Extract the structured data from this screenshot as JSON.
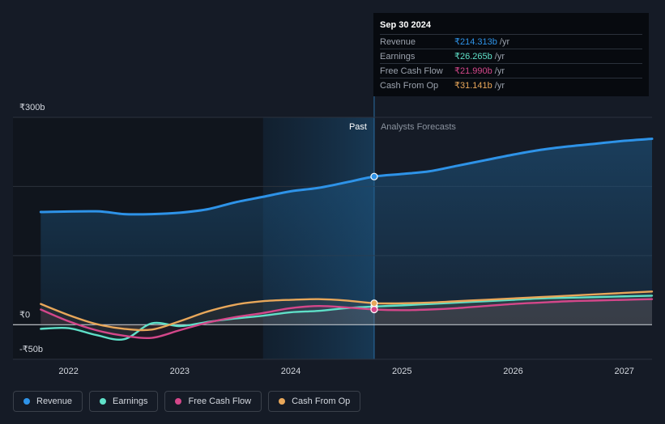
{
  "chart_data": {
    "type": "line",
    "ylim": [
      -50,
      300
    ],
    "y_ticks": [
      {
        "value": 300,
        "label": "₹300b"
      },
      {
        "value": 0,
        "label": "₹0"
      },
      {
        "value": -50,
        "label": "-₹50b"
      }
    ],
    "x_ticks": [
      {
        "value": 2022,
        "label": "2022"
      },
      {
        "value": 2023,
        "label": "2023"
      },
      {
        "value": 2024,
        "label": "2024"
      },
      {
        "value": 2025,
        "label": "2025"
      },
      {
        "value": 2026,
        "label": "2026"
      },
      {
        "value": 2027,
        "label": "2027"
      }
    ],
    "xlim": [
      2021.5,
      2027.25
    ],
    "divider_x": 2024.75,
    "past_start_x": 2023.75,
    "past_label": "Past",
    "forecast_label": "Analysts Forecasts",
    "series": [
      {
        "name": "Revenue",
        "color": "#2e93e8",
        "points": [
          [
            2021.75,
            163
          ],
          [
            2022.25,
            164
          ],
          [
            2022.5,
            160
          ],
          [
            2022.75,
            160
          ],
          [
            2023.0,
            162
          ],
          [
            2023.25,
            167
          ],
          [
            2023.5,
            177
          ],
          [
            2023.75,
            185
          ],
          [
            2024.0,
            193
          ],
          [
            2024.25,
            198
          ],
          [
            2024.5,
            206
          ],
          [
            2024.75,
            214.3
          ],
          [
            2025.0,
            218
          ],
          [
            2025.25,
            222
          ],
          [
            2025.5,
            230
          ],
          [
            2025.75,
            238
          ],
          [
            2026.0,
            246
          ],
          [
            2026.25,
            253
          ],
          [
            2026.5,
            258
          ],
          [
            2026.75,
            262
          ],
          [
            2027.0,
            266
          ],
          [
            2027.25,
            269
          ]
        ]
      },
      {
        "name": "Earnings",
        "color": "#5fe0c8",
        "points": [
          [
            2021.75,
            -6
          ],
          [
            2022.0,
            -5
          ],
          [
            2022.25,
            -15
          ],
          [
            2022.5,
            -21
          ],
          [
            2022.75,
            2
          ],
          [
            2023.0,
            -2
          ],
          [
            2023.25,
            4
          ],
          [
            2023.5,
            9
          ],
          [
            2023.75,
            13
          ],
          [
            2024.0,
            18
          ],
          [
            2024.25,
            20
          ],
          [
            2024.5,
            24
          ],
          [
            2024.75,
            26.3
          ],
          [
            2025.0,
            28
          ],
          [
            2025.25,
            30
          ],
          [
            2025.5,
            32
          ],
          [
            2025.75,
            34
          ],
          [
            2026.0,
            36
          ],
          [
            2026.25,
            38
          ],
          [
            2026.5,
            39
          ],
          [
            2026.75,
            40
          ],
          [
            2027.0,
            41
          ],
          [
            2027.25,
            42
          ]
        ]
      },
      {
        "name": "Free Cash Flow",
        "color": "#d4478a",
        "points": [
          [
            2021.75,
            22
          ],
          [
            2022.0,
            5
          ],
          [
            2022.25,
            -8
          ],
          [
            2022.5,
            -16
          ],
          [
            2022.75,
            -19
          ],
          [
            2023.0,
            -8
          ],
          [
            2023.25,
            3
          ],
          [
            2023.5,
            11
          ],
          [
            2023.75,
            17
          ],
          [
            2024.0,
            24
          ],
          [
            2024.25,
            27
          ],
          [
            2024.5,
            25
          ],
          [
            2024.75,
            22
          ],
          [
            2025.0,
            21
          ],
          [
            2025.25,
            22
          ],
          [
            2025.5,
            24
          ],
          [
            2025.75,
            27
          ],
          [
            2026.0,
            30
          ],
          [
            2026.25,
            32
          ],
          [
            2026.5,
            34
          ],
          [
            2026.75,
            35
          ],
          [
            2027.0,
            36
          ],
          [
            2027.25,
            37
          ]
        ]
      },
      {
        "name": "Cash From Op",
        "color": "#e8a75a",
        "points": [
          [
            2021.75,
            30
          ],
          [
            2022.0,
            14
          ],
          [
            2022.25,
            1
          ],
          [
            2022.5,
            -6
          ],
          [
            2022.75,
            -7
          ],
          [
            2023.0,
            5
          ],
          [
            2023.25,
            19
          ],
          [
            2023.5,
            29
          ],
          [
            2023.75,
            34
          ],
          [
            2024.0,
            36
          ],
          [
            2024.25,
            37
          ],
          [
            2024.5,
            35
          ],
          [
            2024.75,
            31.1
          ],
          [
            2025.0,
            31
          ],
          [
            2025.25,
            32
          ],
          [
            2025.5,
            34
          ],
          [
            2025.75,
            36
          ],
          [
            2026.0,
            38
          ],
          [
            2026.25,
            40
          ],
          [
            2026.5,
            42
          ],
          [
            2026.75,
            44
          ],
          [
            2027.0,
            46
          ],
          [
            2027.25,
            48
          ]
        ]
      }
    ]
  },
  "tooltip": {
    "date": "Sep 30 2024",
    "rows": [
      {
        "label": "Revenue",
        "value": "₹214.313b",
        "unit": "/yr",
        "color": "#2e93e8"
      },
      {
        "label": "Earnings",
        "value": "₹26.265b",
        "unit": "/yr",
        "color": "#5fe0c8"
      },
      {
        "label": "Free Cash Flow",
        "value": "₹21.990b",
        "unit": "/yr",
        "color": "#d4478a"
      },
      {
        "label": "Cash From Op",
        "value": "₹31.141b",
        "unit": "/yr",
        "color": "#e8a75a"
      }
    ]
  },
  "legend": [
    {
      "label": "Revenue",
      "color": "#2e93e8"
    },
    {
      "label": "Earnings",
      "color": "#5fe0c8"
    },
    {
      "label": "Free Cash Flow",
      "color": "#d4478a"
    },
    {
      "label": "Cash From Op",
      "color": "#e8a75a"
    }
  ]
}
